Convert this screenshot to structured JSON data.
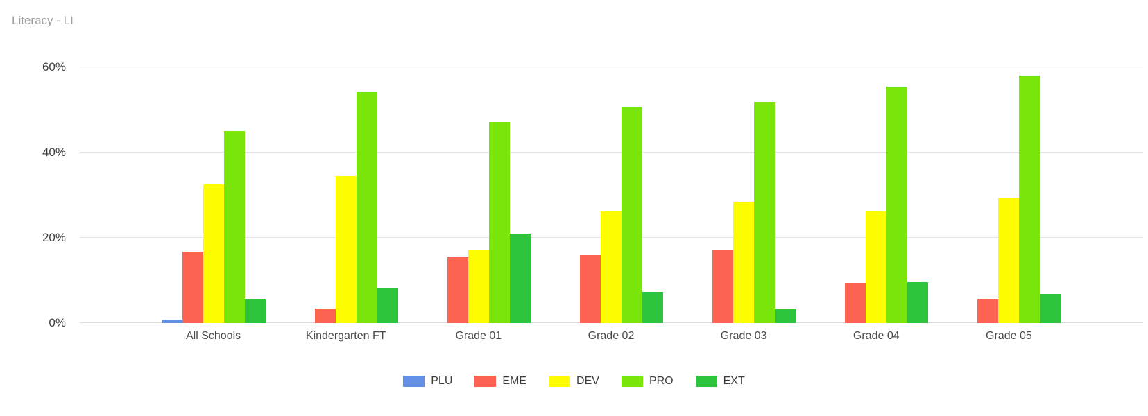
{
  "chart_data": {
    "type": "bar",
    "title": "Literacy - LI",
    "categories": [
      "All Schools",
      "Kindergarten FT",
      "Grade 01",
      "Grade 02",
      "Grade 03",
      "Grade 04",
      "Grade 05"
    ],
    "series": [
      {
        "name": "PLU",
        "color": "#638fe5",
        "values": [
          0.8,
          0,
          0,
          0,
          0,
          0,
          0
        ]
      },
      {
        "name": "EME",
        "color": "#fc6451",
        "values": [
          16.7,
          3.4,
          15.4,
          15.9,
          17.2,
          9.4,
          5.7
        ]
      },
      {
        "name": "DEV",
        "color": "#fdfc00",
        "values": [
          32.6,
          34.5,
          17.2,
          26.2,
          28.4,
          26.2,
          29.4
        ]
      },
      {
        "name": "PRO",
        "color": "#7ae50b",
        "values": [
          45.0,
          54.3,
          47.2,
          50.7,
          51.8,
          55.4,
          58.1
        ]
      },
      {
        "name": "EXT",
        "color": "#2dc33c",
        "values": [
          5.7,
          8.2,
          20.9,
          7.3,
          3.4,
          9.6,
          6.9
        ]
      }
    ],
    "xlabel": "",
    "ylabel": "",
    "ylim": [
      0,
      60
    ],
    "ytick_values": [
      0,
      20,
      40,
      60
    ],
    "ytick_labels": [
      "0%",
      "20%",
      "40%",
      "60%"
    ],
    "grid": true,
    "legend_position": "bottom",
    "value_unit": "percent"
  }
}
